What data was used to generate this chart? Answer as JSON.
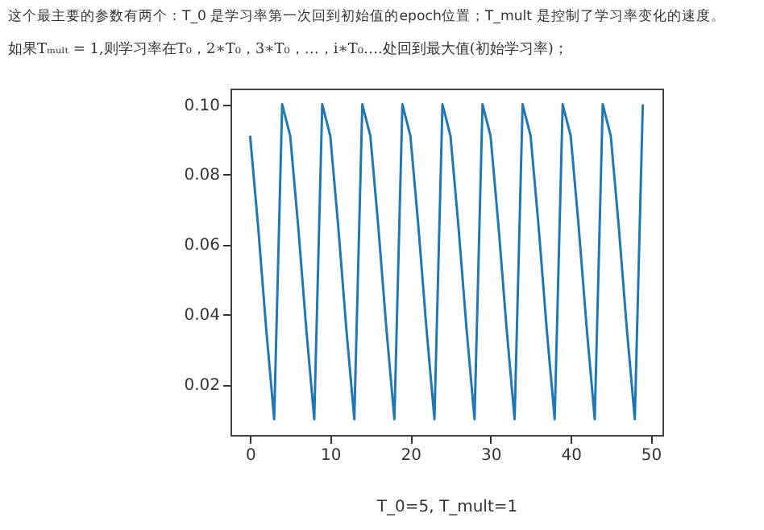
{
  "chart_data": {
    "type": "line",
    "title": "这个最主要的参数有两个：T_0 是学习率第一次回到初始值的epoch位置；T_mult 是控制了学习率变化的速度。",
    "subtitle": "如果Tₘᵤₗₜ = 1,则学习率在T₀，2∗T₀，3∗T₀，…，i∗T₀….处回到最大值(初始学习率)；",
    "xlabel": "T_0=5, T_mult=1",
    "x": [
      0,
      1,
      2,
      3,
      4,
      5,
      6,
      7,
      8,
      9,
      10,
      11,
      12,
      13,
      14,
      15,
      16,
      17,
      18,
      19,
      20,
      21,
      22,
      23,
      24,
      25,
      26,
      27,
      28,
      29,
      30,
      31,
      32,
      33,
      34,
      35,
      36,
      37,
      38,
      39,
      40,
      41,
      42,
      43,
      44,
      45,
      46,
      47,
      48,
      49
    ],
    "series": [
      {
        "color": "#1f77b4",
        "values": [
          0.091,
          0.065,
          0.036,
          0.01,
          0.1,
          0.091,
          0.065,
          0.036,
          0.01,
          0.1,
          0.091,
          0.065,
          0.036,
          0.01,
          0.1,
          0.091,
          0.065,
          0.036,
          0.01,
          0.1,
          0.091,
          0.065,
          0.036,
          0.01,
          0.1,
          0.091,
          0.065,
          0.036,
          0.01,
          0.1,
          0.091,
          0.065,
          0.036,
          0.01,
          0.1,
          0.091,
          0.065,
          0.036,
          0.01,
          0.1,
          0.091,
          0.065,
          0.036,
          0.01,
          0.1,
          0.091,
          0.065,
          0.036,
          0.01,
          0.1
        ]
      }
    ],
    "xlim": [
      -2.45,
      51.45
    ],
    "ylim": [
      0.0055,
      0.1045
    ],
    "xticks": [
      0,
      10,
      20,
      30,
      40,
      50
    ],
    "yticks": [
      {
        "value": 0.02,
        "label": "0.02"
      },
      {
        "value": 0.04,
        "label": "0.04"
      },
      {
        "value": 0.06,
        "label": "0.06"
      },
      {
        "value": 0.08,
        "label": "0.08"
      },
      {
        "value": 0.1,
        "label": "0.10"
      }
    ],
    "grid": false,
    "marker": "none",
    "line_style": "solid"
  }
}
